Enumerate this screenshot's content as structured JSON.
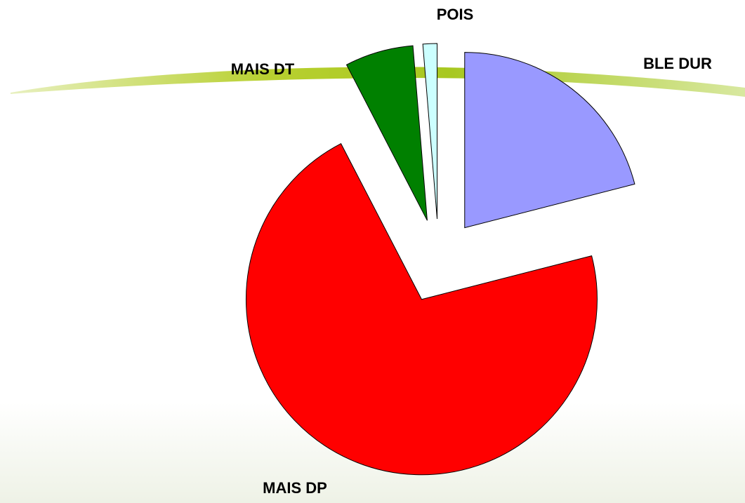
{
  "chart_data": {
    "type": "pie",
    "categories": [
      "BLE DUR",
      "MAIS DP",
      "MAIS DT",
      "POIS"
    ],
    "values": [
      21,
      71.4,
      6.3,
      1.3
    ],
    "colors": [
      "#9999ff",
      "#ff0000",
      "#008000",
      "#ccffff"
    ]
  }
}
